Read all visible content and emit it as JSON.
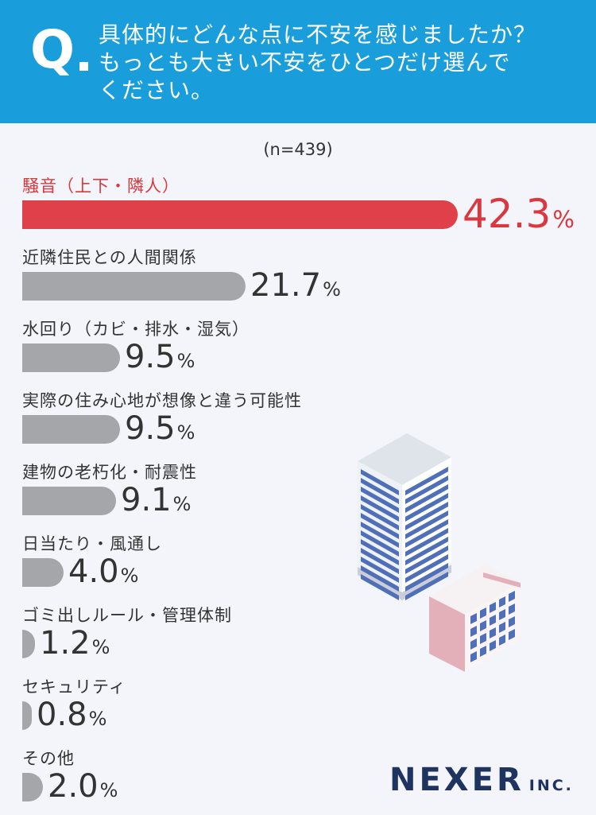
{
  "header": {
    "q_mark": "Q",
    "question_line1": "具体的にどんな点に不安を感じましたか？",
    "question_line2": "もっとも大きい不安をひとつだけ選んで",
    "question_line3": "ください。"
  },
  "sample_size": "(n=439)",
  "chart_data": {
    "type": "bar",
    "orientation": "horizontal",
    "categories": [
      "騒音（上下・隣人）",
      "近隣住民との人間関係",
      "水回り（カビ・排水・湿気）",
      "実際の住み心地が想像と違う可能性",
      "建物の老朽化・耐震性",
      "日当たり・風通し",
      "ゴミ出しルール・管理体制",
      "セキュリティ",
      "その他"
    ],
    "values": [
      42.3,
      21.7,
      9.5,
      9.5,
      9.1,
      4.0,
      1.2,
      0.8,
      2.0
    ],
    "value_labels": [
      "42.3",
      "21.7",
      "9.5",
      "9.5",
      "9.1",
      "4.0",
      "1.2",
      "0.8",
      "2.0"
    ],
    "unit": "%",
    "highlight_index": 0,
    "colors": {
      "highlight": "#e0404a",
      "default": "#a5a6aa"
    }
  },
  "logo": {
    "main": "NEXER",
    "sub": "INC."
  }
}
